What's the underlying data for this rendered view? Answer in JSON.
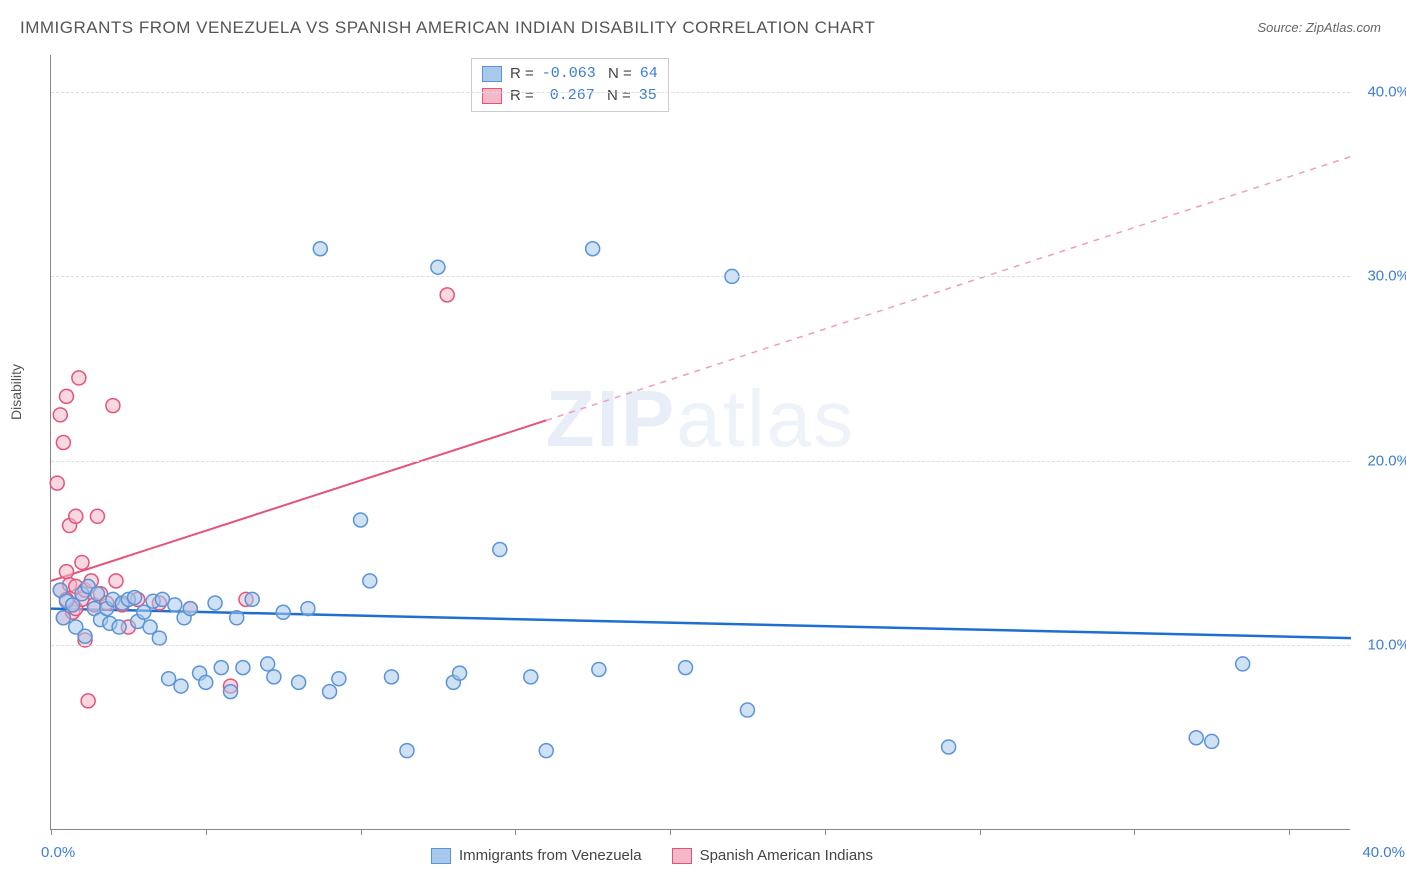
{
  "title": "IMMIGRANTS FROM VENEZUELA VS SPANISH AMERICAN INDIAN DISABILITY CORRELATION CHART",
  "source": "Source: ZipAtlas.com",
  "watermark": {
    "zip": "ZIP",
    "atlas": "atlas"
  },
  "chart": {
    "type": "scatter",
    "ylabel": "Disability",
    "xlim": [
      0,
      42
    ],
    "ylim": [
      0,
      42
    ],
    "x_ticks_pct": [
      0,
      5,
      10,
      15,
      20,
      25,
      30,
      35,
      40
    ],
    "x_labels": {
      "0": "0.0%",
      "40": "40.0%"
    },
    "y_gridlines_pct": [
      10,
      20,
      30,
      40
    ],
    "y_labels": {
      "10": "10.0%",
      "20": "20.0%",
      "30": "30.0%",
      "40": "40.0%"
    },
    "grid_color": "#dddddd",
    "axis_color": "#888888",
    "background_color": "#ffffff",
    "tick_label_color": "#3b7dd8",
    "marker_radius": 7,
    "marker_stroke_width": 1.5,
    "series": [
      {
        "name": "Immigrants from Venezuela",
        "color_fill": "#a8c8ec",
        "color_stroke": "#5b94d6",
        "fill_opacity": 0.55,
        "R": "-0.063",
        "N": "64",
        "trend": {
          "x1": 0,
          "y1": 12.0,
          "x2": 42,
          "y2": 10.4,
          "stroke": "#1f6fd0",
          "width": 2.5,
          "dash": "none"
        },
        "points": [
          [
            0.3,
            13.0
          ],
          [
            0.4,
            11.5
          ],
          [
            0.5,
            12.4
          ],
          [
            0.7,
            12.2
          ],
          [
            0.8,
            11.0
          ],
          [
            1.0,
            12.8
          ],
          [
            1.1,
            10.5
          ],
          [
            1.2,
            13.2
          ],
          [
            1.4,
            12.0
          ],
          [
            1.5,
            12.8
          ],
          [
            1.6,
            11.4
          ],
          [
            1.8,
            12.0
          ],
          [
            1.9,
            11.2
          ],
          [
            2.0,
            12.5
          ],
          [
            2.2,
            11.0
          ],
          [
            2.3,
            12.3
          ],
          [
            2.5,
            12.5
          ],
          [
            2.7,
            12.6
          ],
          [
            2.8,
            11.3
          ],
          [
            3.0,
            11.8
          ],
          [
            3.2,
            11.0
          ],
          [
            3.3,
            12.4
          ],
          [
            3.5,
            10.4
          ],
          [
            3.6,
            12.5
          ],
          [
            3.8,
            8.2
          ],
          [
            4.0,
            12.2
          ],
          [
            4.2,
            7.8
          ],
          [
            4.3,
            11.5
          ],
          [
            4.5,
            12.0
          ],
          [
            4.8,
            8.5
          ],
          [
            5.0,
            8.0
          ],
          [
            5.3,
            12.3
          ],
          [
            5.5,
            8.8
          ],
          [
            5.8,
            7.5
          ],
          [
            6.0,
            11.5
          ],
          [
            6.2,
            8.8
          ],
          [
            6.5,
            12.5
          ],
          [
            7.0,
            9.0
          ],
          [
            7.2,
            8.3
          ],
          [
            7.5,
            11.8
          ],
          [
            8.0,
            8.0
          ],
          [
            8.3,
            12.0
          ],
          [
            8.7,
            31.5
          ],
          [
            9.0,
            7.5
          ],
          [
            9.3,
            8.2
          ],
          [
            10.0,
            16.8
          ],
          [
            10.3,
            13.5
          ],
          [
            11.0,
            8.3
          ],
          [
            11.5,
            4.3
          ],
          [
            12.5,
            30.5
          ],
          [
            13.0,
            8.0
          ],
          [
            13.2,
            8.5
          ],
          [
            14.5,
            15.2
          ],
          [
            15.5,
            8.3
          ],
          [
            16.0,
            4.3
          ],
          [
            17.5,
            31.5
          ],
          [
            17.7,
            8.7
          ],
          [
            20.5,
            8.8
          ],
          [
            22.0,
            30.0
          ],
          [
            22.5,
            6.5
          ],
          [
            29.0,
            4.5
          ],
          [
            37.0,
            5.0
          ],
          [
            37.5,
            4.8
          ],
          [
            38.5,
            9.0
          ]
        ]
      },
      {
        "name": "Spanish American Indians",
        "color_fill": "#f4b8c8",
        "color_stroke": "#e5537a",
        "fill_opacity": 0.55,
        "R": "0.267",
        "N": "35",
        "trend_solid": {
          "x1": 0,
          "y1": 13.5,
          "x2": 16,
          "y2": 22.2,
          "stroke": "#e5537a",
          "width": 2,
          "dash": "none"
        },
        "trend_dashed": {
          "x1": 16,
          "y1": 22.2,
          "x2": 42,
          "y2": 36.5,
          "stroke": "#f0a0b5",
          "width": 1.5,
          "dash": "6,6"
        },
        "points": [
          [
            0.2,
            18.8
          ],
          [
            0.3,
            13.0
          ],
          [
            0.3,
            22.5
          ],
          [
            0.4,
            21.0
          ],
          [
            0.4,
            11.5
          ],
          [
            0.5,
            12.5
          ],
          [
            0.5,
            14.0
          ],
          [
            0.5,
            23.5
          ],
          [
            0.6,
            13.3
          ],
          [
            0.6,
            16.5
          ],
          [
            0.7,
            11.8
          ],
          [
            0.8,
            17.0
          ],
          [
            0.8,
            12.0
          ],
          [
            0.8,
            13.2
          ],
          [
            0.9,
            24.5
          ],
          [
            1.0,
            12.5
          ],
          [
            1.0,
            14.5
          ],
          [
            1.1,
            13.0
          ],
          [
            1.1,
            10.3
          ],
          [
            1.2,
            7.0
          ],
          [
            1.3,
            13.5
          ],
          [
            1.4,
            12.2
          ],
          [
            1.5,
            17.0
          ],
          [
            1.6,
            12.8
          ],
          [
            1.8,
            12.3
          ],
          [
            2.0,
            23.0
          ],
          [
            2.1,
            13.5
          ],
          [
            2.3,
            12.2
          ],
          [
            2.5,
            11.0
          ],
          [
            2.8,
            12.5
          ],
          [
            3.5,
            12.3
          ],
          [
            4.5,
            12.0
          ],
          [
            5.8,
            7.8
          ],
          [
            6.3,
            12.5
          ],
          [
            12.8,
            29.0
          ]
        ]
      }
    ],
    "legend_bottom": [
      {
        "label": "Immigrants from Venezuela",
        "fill": "#a8c8ec",
        "stroke": "#5b94d6"
      },
      {
        "label": "Spanish American Indians",
        "fill": "#f4b8c8",
        "stroke": "#e5537a"
      }
    ]
  }
}
